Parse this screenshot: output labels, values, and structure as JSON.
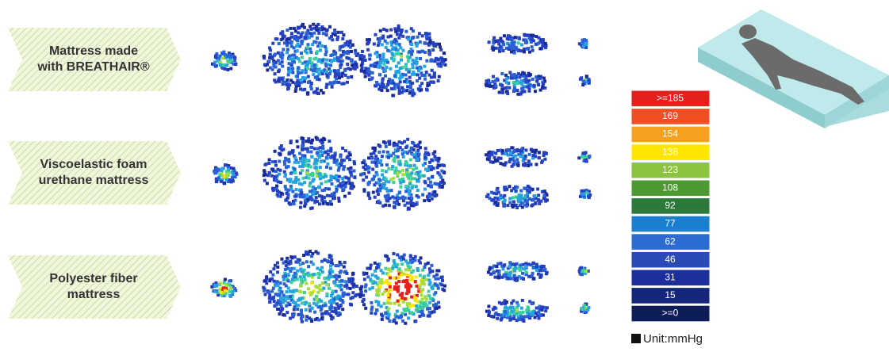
{
  "rows": [
    {
      "label": [
        "Mattress made",
        "with BREATHAIR®"
      ]
    },
    {
      "label": [
        "Viscoelastic foam",
        "urethane mattress"
      ]
    },
    {
      "label": [
        "Polyester fiber",
        "mattress"
      ]
    }
  ],
  "legend": {
    "items": [
      {
        "label": ">=185",
        "color": "#e3201b"
      },
      {
        "label": "169",
        "color": "#f04e23"
      },
      {
        "label": "154",
        "color": "#f6a01f"
      },
      {
        "label": "138",
        "color": "#ffe500"
      },
      {
        "label": "123",
        "color": "#8dc43f"
      },
      {
        "label": "108",
        "color": "#4e9a32"
      },
      {
        "label": "92",
        "color": "#2c7a3a"
      },
      {
        "label": "77",
        "color": "#1b7fd0"
      },
      {
        "label": "62",
        "color": "#2b6cd3"
      },
      {
        "label": "46",
        "color": "#2a4ab8"
      },
      {
        "label": "31",
        "color": "#1d2f9c"
      },
      {
        "label": "15",
        "color": "#15277a"
      },
      {
        "label": ">=0",
        "color": "#0e1c58"
      }
    ],
    "unit": "Unit:mmHg"
  }
}
